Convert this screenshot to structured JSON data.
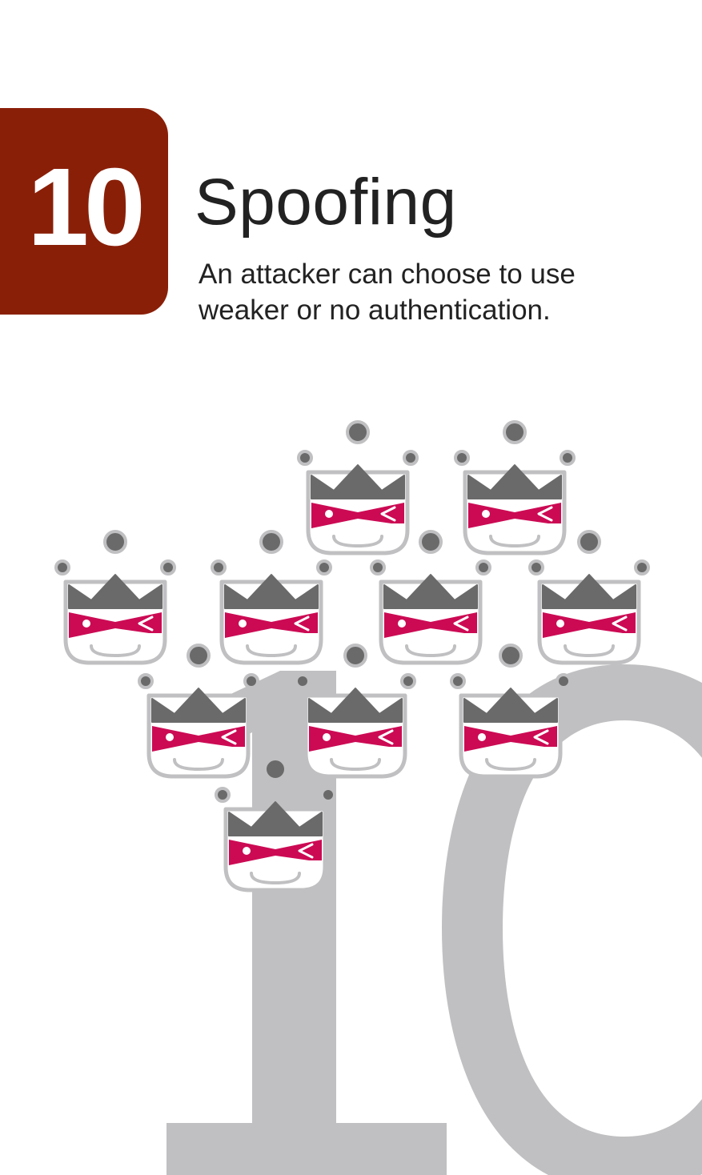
{
  "card": {
    "number": "10",
    "title": "Spoofing",
    "description": "An attacker can choose to use weaker or no authentication."
  },
  "colors": {
    "badge": "#8a1f08",
    "background_number": "#c0c0c2",
    "crown": "#6a6a6a",
    "mask": "#cc0a54",
    "outline": "#c0c0c2"
  },
  "icons": [
    "masked-crowned-face-icon"
  ]
}
